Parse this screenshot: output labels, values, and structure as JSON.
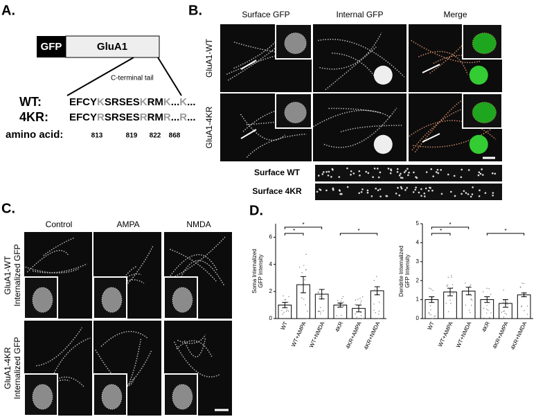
{
  "panel_a": {
    "label": "A.",
    "gfp": "GFP",
    "glua1": "GluA1",
    "tail": "C-terminal tail",
    "sequences": [
      {
        "name": "WT:",
        "segments": [
          "EFCY",
          "K",
          "SRSES",
          "K",
          "RM",
          "K",
          "...",
          "K",
          "..."
        ]
      },
      {
        "name": "4KR:",
        "segments": [
          "EFCY",
          "R",
          "SRSES",
          "R",
          "RM",
          "R",
          "...",
          "R",
          "..."
        ]
      }
    ],
    "aa_label": "amino acid:",
    "positions": [
      "813",
      "819",
      "822",
      "868"
    ]
  },
  "panel_b": {
    "label": "B.",
    "columns": [
      "Surface GFP",
      "Internal GFP",
      "Merge"
    ],
    "rows": [
      "GluA1-WT",
      "GluA1-4KR"
    ],
    "strips": [
      "Surface WT",
      "Surface 4KR"
    ]
  },
  "panel_c": {
    "label": "C.",
    "columns": [
      "Control",
      "AMPA",
      "NMDA"
    ],
    "rows": [
      [
        "GluA1-WT",
        "Internalized GFP"
      ],
      [
        "GluA1-4KR",
        "Internalized GFP"
      ]
    ]
  },
  "panel_d_label": "D.",
  "chart_data": [
    {
      "type": "bar",
      "ylabel": [
        "Soma Internalized",
        "GFP Intensity"
      ],
      "categories": [
        "WT",
        "WT+AMPA",
        "WT+NMDA",
        "4KR",
        "4KR+AMPA",
        "4KR+NMDA"
      ],
      "values": [
        1.0,
        2.5,
        1.8,
        1.0,
        0.75,
        2.05
      ],
      "errors": [
        0.2,
        0.6,
        0.35,
        0.15,
        0.25,
        0.3
      ],
      "color": "#ffffff",
      "ylim": [
        0,
        7
      ],
      "yticks": [
        0,
        2,
        4,
        6
      ],
      "significance": [
        {
          "label": "*",
          "between": [
            "WT",
            "WT+AMPA"
          ]
        },
        {
          "label": "*",
          "between": [
            "WT",
            "WT+NMDA"
          ]
        },
        {
          "label": "*",
          "between": [
            "4KR",
            "4KR+NMDA"
          ]
        }
      ]
    },
    {
      "type": "bar",
      "ylabel": [
        "Dendrite Internalized",
        "GFP Intensity"
      ],
      "categories": [
        "WT",
        "WT+AMPA",
        "WT+NMDA",
        "4KR",
        "4KR+AMPA",
        "4KR+NMDA"
      ],
      "values": [
        1.0,
        1.4,
        1.45,
        1.0,
        0.8,
        1.25
      ],
      "errors": [
        0.15,
        0.2,
        0.2,
        0.15,
        0.2,
        0.1
      ],
      "color": "#ffffff",
      "ylim": [
        0,
        5
      ],
      "yticks": [
        0,
        1,
        2,
        3,
        4,
        5
      ],
      "significance": [
        {
          "label": "*",
          "between": [
            "WT",
            "WT+AMPA"
          ]
        },
        {
          "label": "*",
          "between": [
            "WT",
            "WT+NMDA"
          ]
        },
        {
          "label": "*",
          "between": [
            "4KR",
            "4KR+NMDA"
          ]
        }
      ]
    }
  ]
}
